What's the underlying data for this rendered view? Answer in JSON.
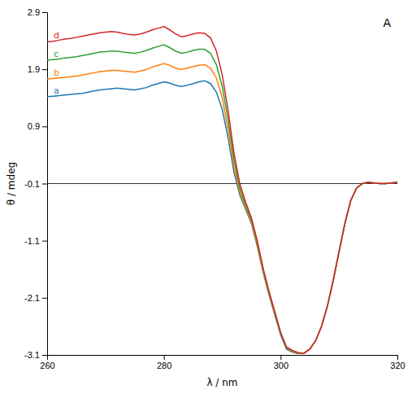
{
  "chart_data": {
    "type": "line",
    "title": "A",
    "xlabel": "λ / nm",
    "ylabel": "θ / mdeg",
    "xlim": [
      260,
      320
    ],
    "ylim": [
      -3.1,
      2.9
    ],
    "xticks": [
      260,
      280,
      300,
      320
    ],
    "yticks": [
      -3.1,
      -2.1,
      -1.1,
      -0.1,
      0.9,
      1.9,
      2.9
    ],
    "hline_y": -0.1,
    "x": [
      260,
      261,
      262,
      263,
      264,
      265,
      266,
      267,
      268,
      269,
      270,
      271,
      272,
      273,
      274,
      275,
      276,
      277,
      278,
      279,
      280,
      281,
      282,
      283,
      284,
      285,
      286,
      287,
      288,
      289,
      290,
      291,
      292,
      293,
      294,
      295,
      296,
      297,
      298,
      299,
      300,
      301,
      302,
      303,
      304,
      305,
      306,
      307,
      308,
      309,
      310,
      311,
      312,
      313,
      314,
      315,
      316,
      317,
      318,
      319,
      320
    ],
    "series": [
      {
        "name": "a",
        "values": [
          1.42,
          1.43,
          1.44,
          1.45,
          1.46,
          1.47,
          1.48,
          1.5,
          1.52,
          1.54,
          1.55,
          1.56,
          1.57,
          1.56,
          1.55,
          1.54,
          1.56,
          1.58,
          1.62,
          1.65,
          1.68,
          1.66,
          1.62,
          1.6,
          1.62,
          1.65,
          1.68,
          1.7,
          1.65,
          1.5,
          1.2,
          0.7,
          0.1,
          -0.3,
          -0.55,
          -0.8,
          -1.2,
          -1.65,
          -2.05,
          -2.4,
          -2.75,
          -3.0,
          -3.05,
          -3.08,
          -3.07,
          -3.0,
          -2.85,
          -2.6,
          -2.25,
          -1.8,
          -1.3,
          -0.8,
          -0.4,
          -0.18,
          -0.1,
          -0.08,
          -0.09,
          -0.1,
          -0.1,
          -0.09,
          -0.08
        ]
      },
      {
        "name": "b",
        "values": [
          1.73,
          1.74,
          1.75,
          1.76,
          1.77,
          1.78,
          1.8,
          1.82,
          1.84,
          1.86,
          1.87,
          1.88,
          1.88,
          1.87,
          1.86,
          1.85,
          1.87,
          1.9,
          1.94,
          1.97,
          2.0,
          1.97,
          1.92,
          1.9,
          1.92,
          1.95,
          1.97,
          1.98,
          1.92,
          1.75,
          1.4,
          0.85,
          0.2,
          -0.25,
          -0.52,
          -0.78,
          -1.18,
          -1.63,
          -2.03,
          -2.38,
          -2.73,
          -2.98,
          -3.04,
          -3.07,
          -3.07,
          -3.0,
          -2.85,
          -2.6,
          -2.25,
          -1.8,
          -1.3,
          -0.8,
          -0.4,
          -0.18,
          -0.1,
          -0.08,
          -0.09,
          -0.1,
          -0.1,
          -0.09,
          -0.08
        ]
      },
      {
        "name": "c",
        "values": [
          2.06,
          2.07,
          2.08,
          2.1,
          2.11,
          2.12,
          2.14,
          2.16,
          2.18,
          2.2,
          2.21,
          2.22,
          2.22,
          2.2,
          2.19,
          2.18,
          2.2,
          2.23,
          2.27,
          2.3,
          2.33,
          2.28,
          2.22,
          2.18,
          2.2,
          2.23,
          2.25,
          2.25,
          2.18,
          1.98,
          1.6,
          1.02,
          0.32,
          -0.18,
          -0.48,
          -0.74,
          -1.14,
          -1.6,
          -2.0,
          -2.36,
          -2.72,
          -2.97,
          -3.03,
          -3.06,
          -3.07,
          -3.0,
          -2.85,
          -2.6,
          -2.25,
          -1.8,
          -1.3,
          -0.8,
          -0.4,
          -0.18,
          -0.1,
          -0.08,
          -0.09,
          -0.1,
          -0.1,
          -0.09,
          -0.08
        ]
      },
      {
        "name": "d",
        "values": [
          2.38,
          2.39,
          2.41,
          2.43,
          2.44,
          2.46,
          2.48,
          2.5,
          2.52,
          2.54,
          2.55,
          2.56,
          2.55,
          2.53,
          2.51,
          2.5,
          2.52,
          2.55,
          2.59,
          2.62,
          2.65,
          2.59,
          2.52,
          2.47,
          2.49,
          2.52,
          2.54,
          2.53,
          2.45,
          2.22,
          1.8,
          1.18,
          0.44,
          -0.1,
          -0.42,
          -0.7,
          -1.1,
          -1.58,
          -1.98,
          -2.34,
          -2.7,
          -2.96,
          -3.02,
          -3.06,
          -3.07,
          -3.0,
          -2.85,
          -2.6,
          -2.25,
          -1.8,
          -1.3,
          -0.8,
          -0.4,
          -0.18,
          -0.1,
          -0.08,
          -0.09,
          -0.1,
          -0.1,
          -0.09,
          -0.08
        ]
      }
    ]
  }
}
